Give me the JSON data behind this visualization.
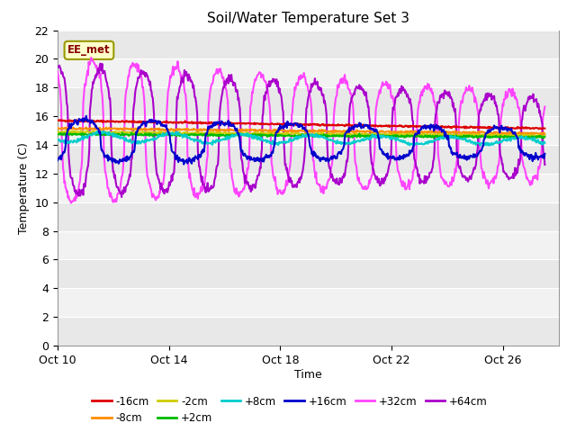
{
  "title": "Soil/Water Temperature Set 3",
  "xlabel": "Time",
  "ylabel": "Temperature (C)",
  "ylim": [
    0,
    22
  ],
  "yticks": [
    0,
    2,
    4,
    6,
    8,
    10,
    12,
    14,
    16,
    18,
    20,
    22
  ],
  "xtick_labels": [
    "Oct 10",
    "Oct 14",
    "Oct 18",
    "Oct 22",
    "Oct 26"
  ],
  "xtick_positions": [
    10,
    14,
    18,
    22,
    26
  ],
  "series_colors": {
    "-16cm": "#dd0000",
    "-8cm": "#ff8c00",
    "-2cm": "#cccc00",
    "+2cm": "#00bb00",
    "+8cm": "#00cccc",
    "+16cm": "#0000cc",
    "+32cm": "#ff44ff",
    "+64cm": "#aa00cc"
  },
  "legend_label": "EE_met",
  "legend_bg": "#ffffcc",
  "legend_border": "#999900"
}
